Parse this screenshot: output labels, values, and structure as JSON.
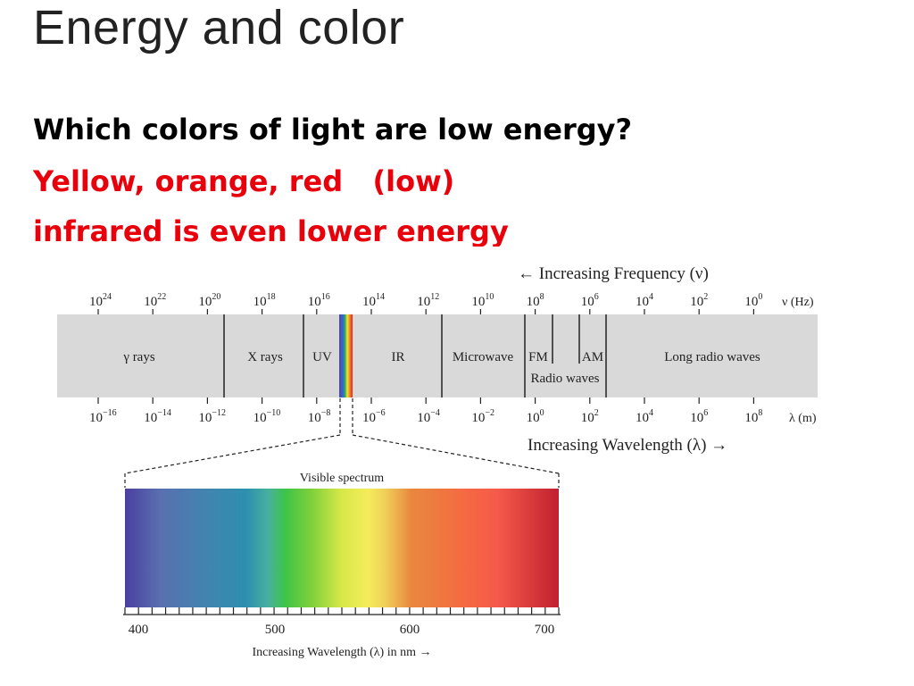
{
  "slide": {
    "title": "Energy and color",
    "question": "Which colors of light are low energy?",
    "answer": "Yellow, orange, red   (low)",
    "note": "infrared is even lower energy"
  },
  "spectrum": {
    "frequency_label": "← Increasing Frequency (ν)",
    "frequency_unit": "ν (Hz)",
    "frequency_ticks": [
      {
        "base": "10",
        "exp": "24"
      },
      {
        "base": "10",
        "exp": "22"
      },
      {
        "base": "10",
        "exp": "20"
      },
      {
        "base": "10",
        "exp": "18"
      },
      {
        "base": "10",
        "exp": "16"
      },
      {
        "base": "10",
        "exp": "14"
      },
      {
        "base": "10",
        "exp": "12"
      },
      {
        "base": "10",
        "exp": "10"
      },
      {
        "base": "10",
        "exp": "8"
      },
      {
        "base": "10",
        "exp": "6"
      },
      {
        "base": "10",
        "exp": "4"
      },
      {
        "base": "10",
        "exp": "2"
      },
      {
        "base": "10",
        "exp": "0"
      }
    ],
    "regions": {
      "gamma": "γ rays",
      "xray": "X rays",
      "uv": "UV",
      "ir": "IR",
      "microwave": "Microwave",
      "fm": "FM",
      "am": "AM",
      "radio": "Radio waves",
      "long": "Long radio waves"
    },
    "wavelength_ticks": [
      {
        "base": "10",
        "exp": "−16"
      },
      {
        "base": "10",
        "exp": "−14"
      },
      {
        "base": "10",
        "exp": "−12"
      },
      {
        "base": "10",
        "exp": "−10"
      },
      {
        "base": "10",
        "exp": "−8"
      },
      {
        "base": "10",
        "exp": "−6"
      },
      {
        "base": "10",
        "exp": "−4"
      },
      {
        "base": "10",
        "exp": "−2"
      },
      {
        "base": "10",
        "exp": "0"
      },
      {
        "base": "10",
        "exp": "2"
      },
      {
        "base": "10",
        "exp": "4"
      },
      {
        "base": "10",
        "exp": "6"
      },
      {
        "base": "10",
        "exp": "8"
      }
    ],
    "wavelength_unit": "λ (m)",
    "wavelength_label": "Increasing Wavelength (λ) →",
    "visible_title": "Visible spectrum",
    "visible_ticks": [
      "400",
      "500",
      "600",
      "700"
    ],
    "visible_label": "Increasing Wavelength (λ) in nm →"
  }
}
